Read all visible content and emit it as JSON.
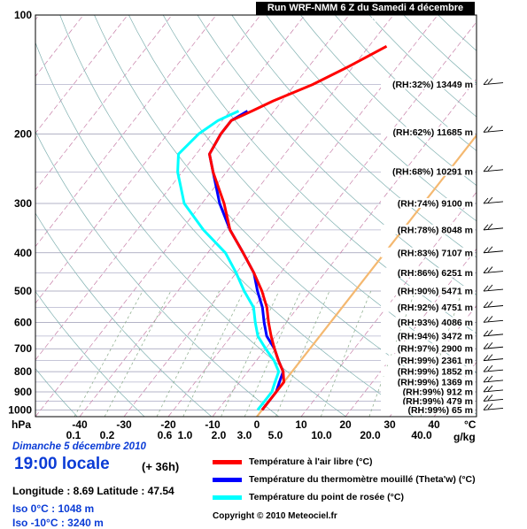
{
  "header": {
    "run_title": "Run WRF-NMM 6 Z du Samedi 4 décembre 2010"
  },
  "info": {
    "date": "Dimanche 5 décembre 2010",
    "local_time": "19:00 locale",
    "lead": "(+ 36h)",
    "lonlat": "Longitude : 8.69   Latitude : 47.54",
    "iso0": "Iso 0°C : 1048 m",
    "iso10": "Iso -10°C : 3240 m",
    "copyright": "Copyright © 2010 Meteociel.fr"
  },
  "legend": [
    {
      "label": "Température à l'air libre (°C)",
      "color": "#ff0000"
    },
    {
      "label": "Température du thermomètre mouillé (Theta'w) (°C)",
      "color": "#0000ff"
    },
    {
      "label": "Température du point de rosée (°C)",
      "color": "#00ffff"
    }
  ],
  "chart_data": {
    "type": "line",
    "x_axis_unit": "°C",
    "y_axis_unit": "hPa",
    "mixing_ratio_unit": "g/kg",
    "temperature_ticks": [
      {
        "value": -40,
        "label": "-40"
      },
      {
        "value": -30,
        "label": "-30"
      },
      {
        "value": -20,
        "label": "-20"
      },
      {
        "value": -10,
        "label": "-10"
      },
      {
        "value": 0,
        "label": "0"
      },
      {
        "value": 10,
        "label": "10"
      },
      {
        "value": 20,
        "label": "20"
      },
      {
        "value": 30,
        "label": "30"
      },
      {
        "value": 40,
        "label": "40"
      }
    ],
    "pressure_ticks": [
      {
        "value": 100,
        "label": "100"
      },
      {
        "value": 200,
        "label": "200"
      },
      {
        "value": 300,
        "label": "300"
      },
      {
        "value": 400,
        "label": "400"
      },
      {
        "value": 500,
        "label": "500"
      },
      {
        "value": 600,
        "label": "600"
      },
      {
        "value": 700,
        "label": "700"
      },
      {
        "value": 800,
        "label": "800"
      },
      {
        "value": 900,
        "label": "900"
      },
      {
        "value": 1000,
        "label": "1000"
      }
    ],
    "mixing_ratio_labels": [
      "0.1",
      "0.2",
      "0.6",
      "1.0",
      "2.0",
      "3.0",
      "5.0",
      "10.0",
      "20.0",
      "40.0"
    ],
    "level_labels": [
      {
        "p": 150,
        "text": "(RH:32%) 13449 m"
      },
      {
        "p": 198,
        "text": "(RH:62%) 11685 m"
      },
      {
        "p": 249,
        "text": "(RH:68%) 10291 m"
      },
      {
        "p": 300,
        "text": "(RH:74%) 9100 m"
      },
      {
        "p": 350,
        "text": "(RH:78%) 8048 m"
      },
      {
        "p": 400,
        "text": "(RH:83%) 7107 m"
      },
      {
        "p": 450,
        "text": "(RH:86%) 6251 m"
      },
      {
        "p": 500,
        "text": "(RH:90%) 5471 m"
      },
      {
        "p": 550,
        "text": "(RH:92%) 4751 m"
      },
      {
        "p": 600,
        "text": "(RH:93%) 4086 m"
      },
      {
        "p": 650,
        "text": "(RH:94%) 3472 m"
      },
      {
        "p": 700,
        "text": "(RH:97%) 2900 m"
      },
      {
        "p": 750,
        "text": "(RH:99%) 2361 m"
      },
      {
        "p": 800,
        "text": "(RH:99%) 1852 m"
      },
      {
        "p": 850,
        "text": "(RH:99%) 1369 m"
      },
      {
        "p": 900,
        "text": "(RH:99%) 912 m"
      },
      {
        "p": 950,
        "text": "(RH:99%) 479 m"
      },
      {
        "p": 1000,
        "text": "(RH:99%) 65 m"
      }
    ],
    "series": [
      {
        "name": "Température à l'air libre (°C)",
        "color": "#ff0000",
        "points": [
          [
            120,
            -36
          ],
          [
            135,
            -41
          ],
          [
            150,
            -46
          ],
          [
            165,
            -52
          ],
          [
            175,
            -55
          ],
          [
            185,
            -58
          ],
          [
            200,
            -58
          ],
          [
            225,
            -57
          ],
          [
            250,
            -53
          ],
          [
            300,
            -45
          ],
          [
            350,
            -39
          ],
          [
            400,
            -32
          ],
          [
            450,
            -26
          ],
          [
            500,
            -21
          ],
          [
            550,
            -17
          ],
          [
            600,
            -14
          ],
          [
            650,
            -11
          ],
          [
            700,
            -8
          ],
          [
            750,
            -5
          ],
          [
            800,
            -2
          ],
          [
            850,
            0
          ],
          [
            900,
            0
          ],
          [
            950,
            0
          ],
          [
            1000,
            0
          ]
        ]
      },
      {
        "name": "Température du thermomètre mouillé (Theta'w) (°C)",
        "color": "#0000ff",
        "points": [
          [
            175,
            -56
          ],
          [
            185,
            -58
          ],
          [
            200,
            -58
          ],
          [
            225,
            -57
          ],
          [
            250,
            -53
          ],
          [
            300,
            -46
          ],
          [
            350,
            -39
          ],
          [
            400,
            -32
          ],
          [
            450,
            -26
          ],
          [
            500,
            -22
          ],
          [
            550,
            -18
          ],
          [
            600,
            -15
          ],
          [
            650,
            -12
          ],
          [
            700,
            -8
          ],
          [
            750,
            -5
          ],
          [
            800,
            -2
          ],
          [
            850,
            -1
          ],
          [
            900,
            0
          ],
          [
            950,
            0
          ],
          [
            1000,
            0
          ]
        ]
      },
      {
        "name": "Température du point de rosée (°C)",
        "color": "#00ffff",
        "points": [
          [
            175,
            -58
          ],
          [
            185,
            -61
          ],
          [
            200,
            -63
          ],
          [
            225,
            -64
          ],
          [
            250,
            -61
          ],
          [
            300,
            -54
          ],
          [
            350,
            -45
          ],
          [
            400,
            -36
          ],
          [
            450,
            -30
          ],
          [
            500,
            -25
          ],
          [
            550,
            -20
          ],
          [
            600,
            -17
          ],
          [
            650,
            -14
          ],
          [
            700,
            -10
          ],
          [
            750,
            -6
          ],
          [
            800,
            -3
          ],
          [
            850,
            -2
          ],
          [
            900,
            -1
          ],
          [
            950,
            -1
          ],
          [
            1000,
            -1
          ]
        ]
      }
    ]
  }
}
